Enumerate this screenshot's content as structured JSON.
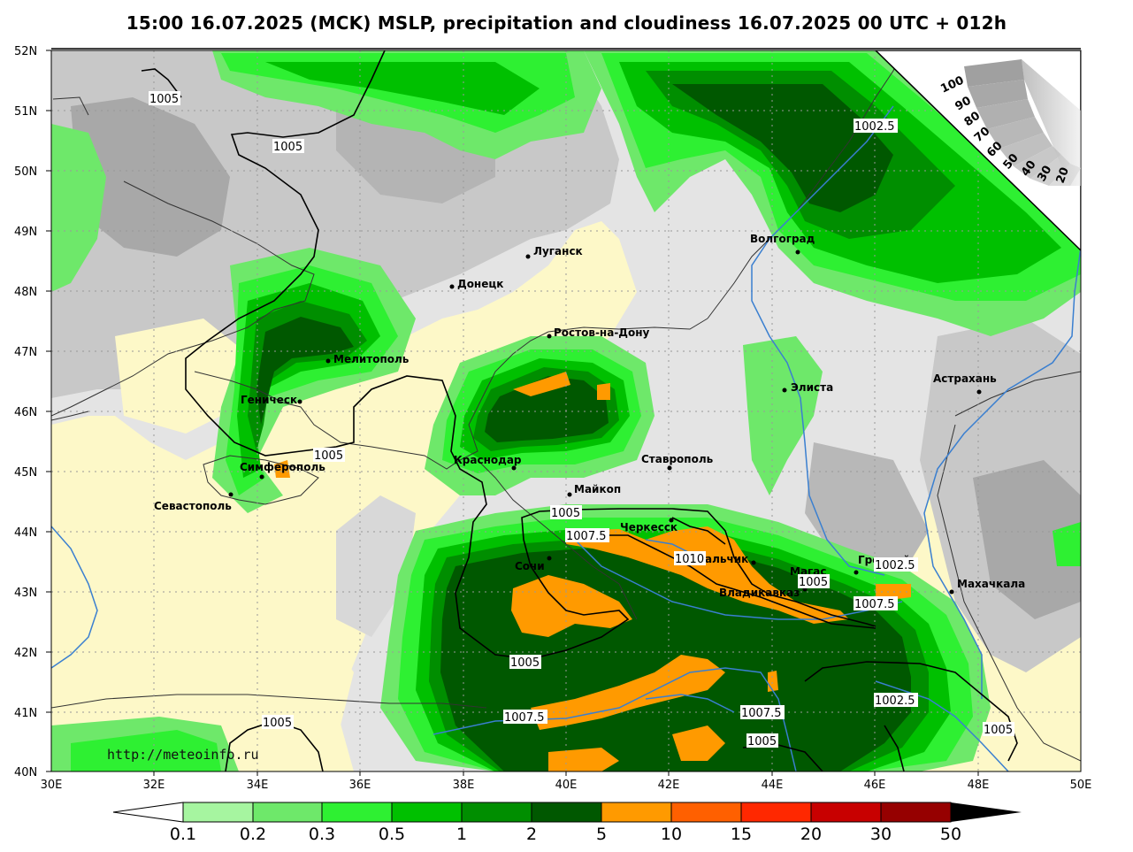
{
  "title": "15:00 16.07.2025 (MCK) MSLP, precipitation and cloudiness 16.07.2025 00 UTC + 012h",
  "source_url": "http://meteoinfo.ru",
  "lat_labels": [
    "52N",
    "51N",
    "50N",
    "49N",
    "48N",
    "47N",
    "46N",
    "45N",
    "44N",
    "43N",
    "42N",
    "41N",
    "40N"
  ],
  "lon_labels": [
    "30E",
    "32E",
    "34E",
    "36E",
    "38E",
    "40E",
    "42E",
    "44E",
    "46E",
    "48E",
    "50E"
  ],
  "cities": [
    {
      "id": "lugansk",
      "name": "Луганск"
    },
    {
      "id": "donetsk",
      "name": "Донецк"
    },
    {
      "id": "volgograd",
      "name": "Волгоград"
    },
    {
      "id": "rostov",
      "name": "Ростов-на-Дону"
    },
    {
      "id": "melitopol",
      "name": "Мелитополь"
    },
    {
      "id": "genichesk",
      "name": "Геническ"
    },
    {
      "id": "elista",
      "name": "Элиста"
    },
    {
      "id": "astrakhan",
      "name": "Астрахань"
    },
    {
      "id": "krasnodar",
      "name": "Краснодар"
    },
    {
      "id": "stavropol",
      "name": "Ставрополь"
    },
    {
      "id": "simferopol",
      "name": "Симферополь"
    },
    {
      "id": "maykop",
      "name": "Майкоп"
    },
    {
      "id": "sevastopol",
      "name": "Севастополь"
    },
    {
      "id": "cherkessk",
      "name": "Черкесск"
    },
    {
      "id": "sochi",
      "name": "Сочи"
    },
    {
      "id": "nalchik",
      "name": "Нальчик"
    },
    {
      "id": "magas",
      "name": "Магас"
    },
    {
      "id": "grozny",
      "name": "Грозный"
    },
    {
      "id": "vladikavkaz",
      "name": "Владикавказ"
    },
    {
      "id": "makhachkala",
      "name": "Махачкала"
    }
  ],
  "isobar_labels": [
    "1005",
    "1005",
    "1002.5",
    "1005",
    "1005",
    "1007.5",
    "1010",
    "1005",
    "1002.5",
    "1007.5",
    "1005",
    "1002.5",
    "1007.5",
    "1007.5",
    "1005",
    "1005",
    "1005"
  ],
  "colorbar": {
    "labels": [
      "0.1",
      "0.2",
      "0.3",
      "0.5",
      "1",
      "2",
      "5",
      "10",
      "15",
      "20",
      "30",
      "50"
    ],
    "colors": [
      "#a6f5a0",
      "#6ee86a",
      "#2ef032",
      "#00c000",
      "#008e00",
      "#005800",
      "#ff9a00",
      "#ff6000",
      "#ff2800",
      "#c80000",
      "#960000"
    ]
  },
  "cloudiness_scale": [
    "100",
    "90",
    "80",
    "70",
    "60",
    "50",
    "40",
    "30",
    "20"
  ],
  "colors": {
    "land_bg": "#fdf8c8",
    "cloud_light": "#e6e6e6",
    "cloud_mid": "#c8c8c8",
    "cloud_dark": "#a8a8a8",
    "isobar": "#000000",
    "isobar_blue": "#3a7fd0",
    "coast": "#333333"
  }
}
